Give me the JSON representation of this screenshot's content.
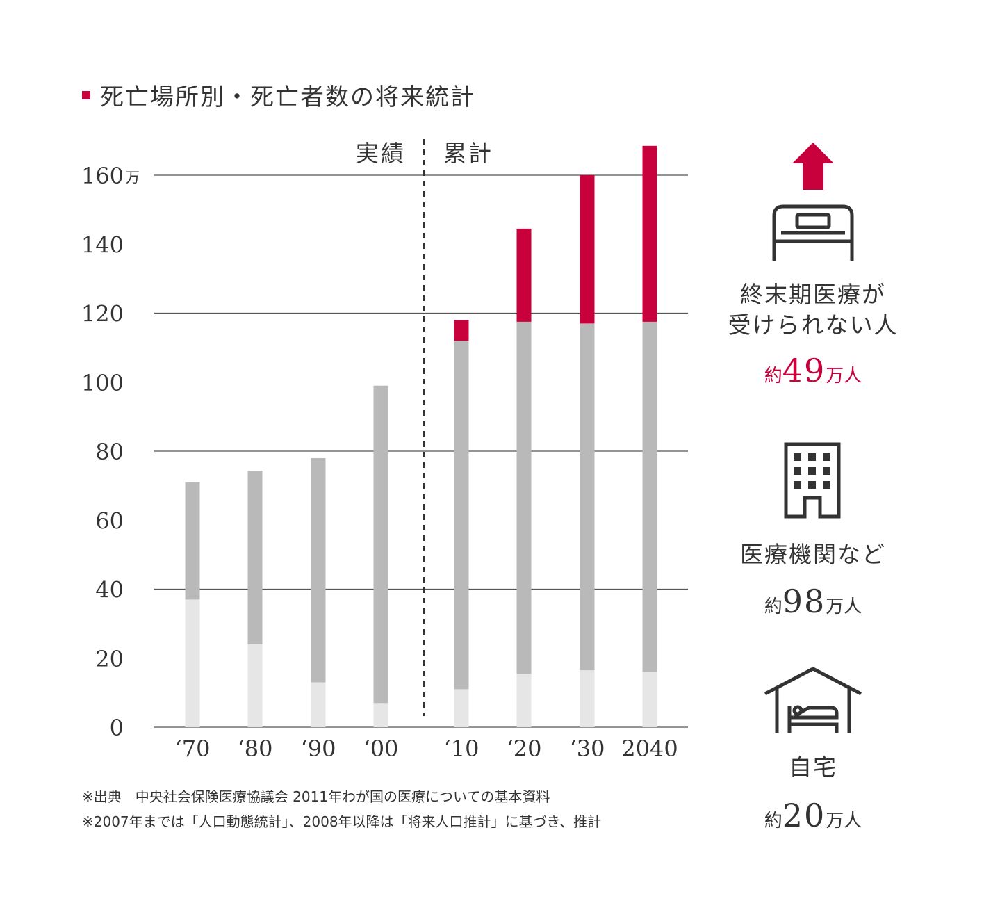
{
  "title": "死亡場所別・死亡者数の将来統計",
  "colors": {
    "accent": "#c8003c",
    "dark_gray": "#b9b9b9",
    "light_gray": "#e6e6e6",
    "line": "#555555",
    "icon": "#333333"
  },
  "chart_data": {
    "type": "bar",
    "stacked": true,
    "categories": [
      "‘70",
      "‘80",
      "‘90",
      "‘00",
      "‘10",
      "‘20",
      "‘30",
      "2040"
    ],
    "series": [
      {
        "name": "自宅",
        "color": "#e6e6e6",
        "values": [
          37,
          24,
          13,
          7,
          11,
          15.5,
          16.5,
          16
        ]
      },
      {
        "name": "医療機関など",
        "color": "#b9b9b9",
        "values": [
          34,
          50.3,
          65,
          92,
          101,
          102,
          100.5,
          101.5
        ]
      },
      {
        "name": "終末期医療が受けられない人",
        "color": "#c8003c",
        "values": [
          0,
          0,
          0,
          0,
          6,
          27,
          43,
          51
        ]
      }
    ],
    "y_ticks": [
      "0",
      "20",
      "40",
      "60",
      "80",
      "100",
      "120",
      "140",
      "160"
    ],
    "y_unit": "万",
    "ylim": [
      0,
      160
    ],
    "gridlines_at": [
      0,
      40,
      80,
      120,
      160
    ],
    "divider_labels": {
      "left": "実績",
      "right": "累計"
    },
    "divider_after_category": "‘00"
  },
  "side_panel": {
    "groups": [
      {
        "icon": "bed-icon",
        "label_lines": [
          "終末期医療が",
          "受けられない人"
        ],
        "prefix": "約",
        "number": "49",
        "unit": "万人",
        "highlight": true
      },
      {
        "icon": "hospital-building-icon",
        "label_lines": [
          "医療機関など"
        ],
        "prefix": "約",
        "number": "98",
        "unit": "万人",
        "highlight": false
      },
      {
        "icon": "home-icon",
        "label_lines": [
          "自宅"
        ],
        "prefix": "約",
        "number": "20",
        "unit": "万人",
        "highlight": false
      }
    ]
  },
  "notes": [
    "※出典　中央社会保険医療協議会 2011年わが国の医療についての基本資料",
    "※2007年までは「人口動態統計」、2008年以降は「将来人口推計」に基づき、推計"
  ]
}
